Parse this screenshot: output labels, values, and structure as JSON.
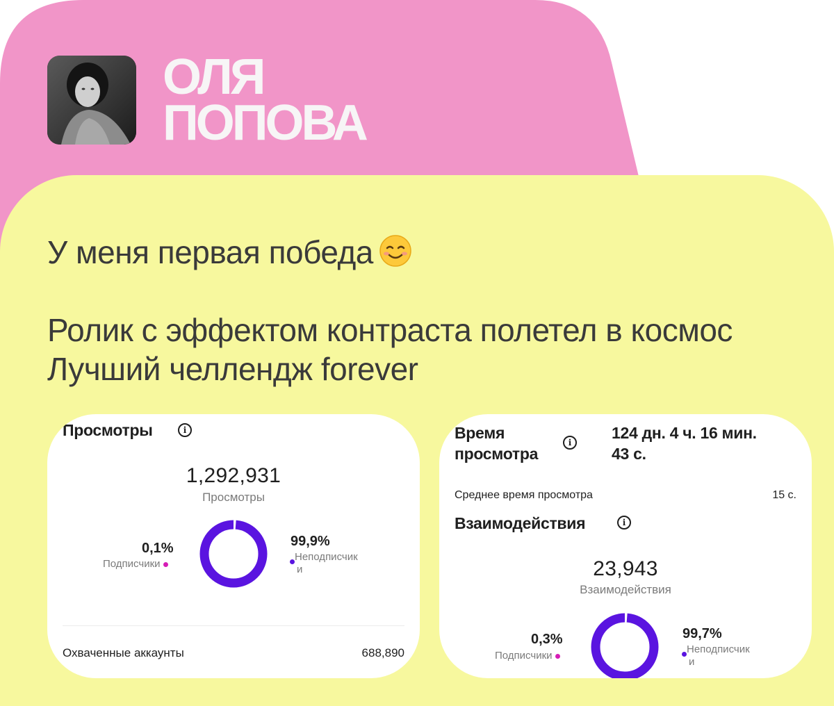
{
  "author": {
    "name_line1": "ОЛЯ",
    "name_line2": "ПОПОВА",
    "avatar": "profile-photo"
  },
  "post": {
    "line1": "У меня первая победа",
    "line1_emoji": "smiling-face-emoji",
    "line2": "Ролик с эффектом контраста полетел в космос",
    "line3": "Лучший челлендж forever"
  },
  "views_card": {
    "title": "Просмотры",
    "total": "1,292,931",
    "total_label": "Просмотры",
    "followers_pct": "0,1%",
    "followers_label": "Подписчики",
    "nonfollowers_pct": "99,9%",
    "nonfollowers_label_1": "Неподписчик",
    "nonfollowers_label_2": "и",
    "reach_label": "Охваченные аккаунты",
    "reach_value": "688,890",
    "donut": {
      "followers_fraction": 0.001,
      "nonfollowers_fraction": 0.999
    }
  },
  "watch_card": {
    "watch_title_1": "Время",
    "watch_title_2": "просмотра",
    "watch_value_1": "124 дн. 4 ч. 16 мин.",
    "watch_value_2": "43 с.",
    "avg_label": "Среднее время просмотра",
    "avg_value": "15 с.",
    "interactions_title": "Взаимодействия",
    "interactions_total": "23,943",
    "interactions_label": "Взаимодействия",
    "followers_pct": "0,3%",
    "followers_label": "Подписчики",
    "nonfollowers_pct": "99,7%",
    "nonfollowers_label_1": "Неподписчик",
    "nonfollowers_label_2": "и",
    "donut": {
      "followers_fraction": 0.003,
      "nonfollowers_fraction": 0.997
    }
  },
  "colors": {
    "pink": "#f195c8",
    "yellow": "#f7f89e",
    "nonfollowers": "#5a14e0",
    "followers": "#d61db6"
  }
}
